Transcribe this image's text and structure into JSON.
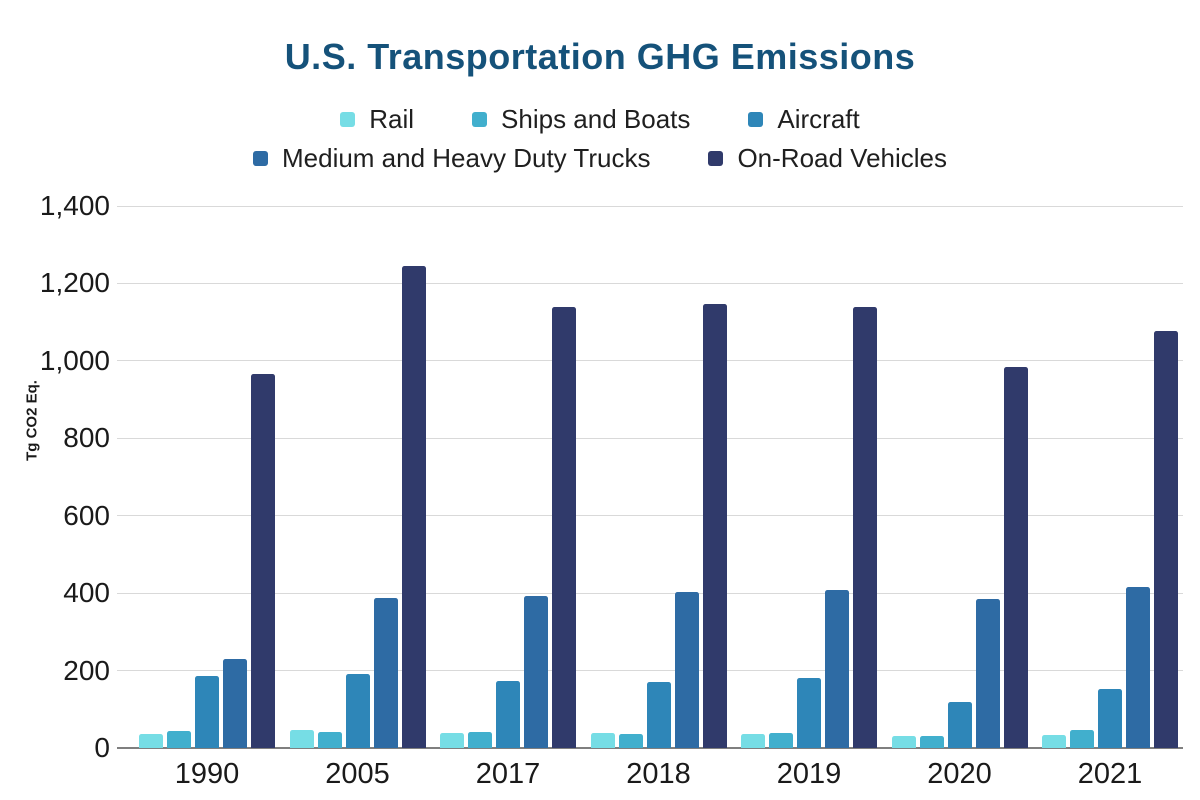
{
  "title": "U.S. Transportation GHG Emissions",
  "title_color": "#15527A",
  "chart_data": {
    "type": "bar",
    "title": "U.S. Transportation GHG Emissions",
    "ylabel": "Tg CO2 Eq.",
    "xlabel": "",
    "ylim": [
      0,
      1400
    ],
    "yticks": [
      "0",
      "200",
      "400",
      "600",
      "800",
      "1,000",
      "1,200",
      "1,400"
    ],
    "ytick_values": [
      0,
      200,
      400,
      600,
      800,
      1000,
      1200,
      1400
    ],
    "grid": true,
    "legend_position": "top",
    "legend_rows": [
      [
        0,
        1,
        2
      ],
      [
        3,
        4
      ]
    ],
    "categories": [
      "1990",
      "2005",
      "2017",
      "2018",
      "2019",
      "2020",
      "2021"
    ],
    "series": [
      {
        "name": "Rail",
        "color": "#76DDE5",
        "values": [
          36,
          47,
          40,
          40,
          37,
          31,
          33
        ]
      },
      {
        "name": "Ships and Boats",
        "color": "#41AFCD",
        "values": [
          44,
          41,
          42,
          37,
          38,
          30,
          47
        ]
      },
      {
        "name": "Aircraft",
        "color": "#2E86B8",
        "values": [
          187,
          191,
          172,
          171,
          182,
          120,
          152
        ]
      },
      {
        "name": "Medium and Heavy Duty Trucks",
        "color": "#2E6BA4",
        "values": [
          231,
          388,
          392,
          403,
          408,
          385,
          415
        ]
      },
      {
        "name": "On-Road Vehicles",
        "color": "#303A6B",
        "values": [
          965,
          1244,
          1138,
          1148,
          1138,
          985,
          1077
        ]
      }
    ]
  },
  "layout_colors": {
    "gridline": "#d9d9d9",
    "axis_line": "#7f7f7f",
    "tick_text": "#1a1a1a"
  }
}
